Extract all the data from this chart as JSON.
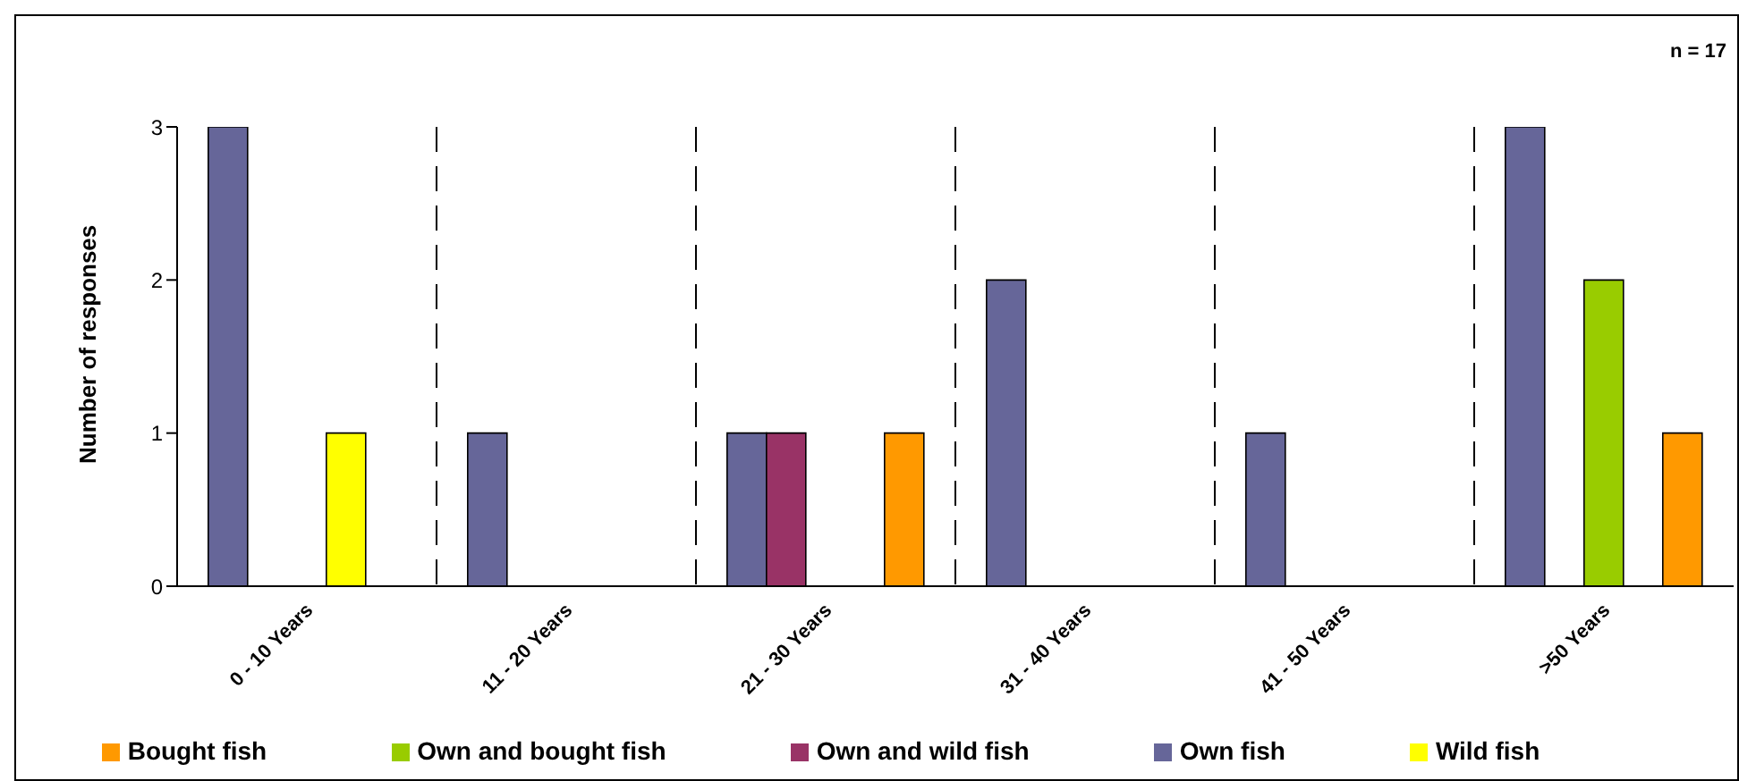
{
  "chart_data": {
    "type": "bar",
    "ylabel": "Number of responses",
    "annotations": [
      "n = 17"
    ],
    "categories": [
      "0 - 10 Years",
      "11 - 20 Years",
      "21 - 30 Years",
      "31 - 40 Years",
      "41 - 50 Years",
      ">50 Years"
    ],
    "series": [
      {
        "name": "Own fish",
        "color": "#666699",
        "values": [
          3,
          1,
          1,
          2,
          1,
          3
        ]
      },
      {
        "name": "Own and wild fish",
        "color": "#993366",
        "values": [
          0,
          0,
          1,
          0,
          0,
          0
        ]
      },
      {
        "name": "Own and bought fish",
        "color": "#99cc00",
        "values": [
          0,
          0,
          0,
          0,
          0,
          2
        ]
      },
      {
        "name": "Wild fish",
        "color": "#ffff00",
        "values": [
          1,
          0,
          0,
          0,
          0,
          0
        ]
      },
      {
        "name": "Bought fish",
        "color": "#ff9900",
        "values": [
          0,
          0,
          1,
          0,
          0,
          1
        ]
      }
    ],
    "ylim": [
      0,
      3
    ],
    "yticks": [
      0,
      1,
      2,
      3
    ],
    "grid": "x",
    "legend": "bottom"
  }
}
